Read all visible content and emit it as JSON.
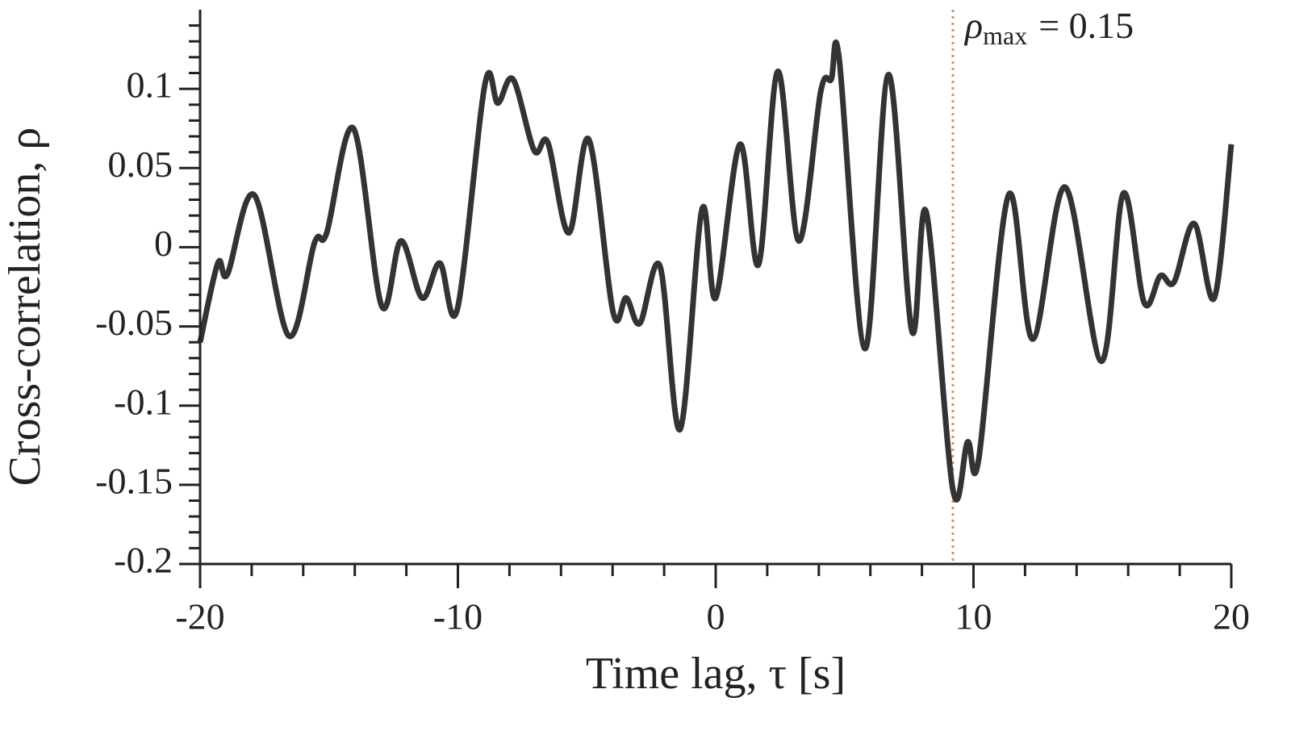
{
  "chart_data": {
    "type": "line",
    "xlabel": "Time lag, τ [s]",
    "ylabel": "Cross-correlation, ρ",
    "xlim": [
      -20,
      20
    ],
    "xticks": [
      -20,
      -10,
      0,
      10,
      20
    ],
    "xminorticks": [
      -18,
      -16,
      -14,
      -12,
      -8,
      -6,
      -4,
      -2,
      2,
      4,
      6,
      8,
      12,
      14,
      16,
      18
    ],
    "ylim": [
      -0.2,
      0.15
    ],
    "yticks": [
      -0.2,
      -0.15,
      -0.1,
      -0.05,
      0,
      0.05,
      0.1
    ],
    "yminorticks": [
      -0.19,
      -0.18,
      -0.17,
      -0.16,
      -0.14,
      -0.13,
      -0.12,
      -0.11,
      -0.09,
      -0.08,
      -0.07,
      -0.06,
      -0.04,
      -0.03,
      -0.02,
      -0.01,
      0.01,
      0.02,
      0.03,
      0.04,
      0.06,
      0.07,
      0.08,
      0.09,
      0.11,
      0.12,
      0.13,
      0.14
    ],
    "series": [
      {
        "color": "#333333",
        "x": [
          -20,
          -19.31,
          -18.94,
          -17.9,
          -16.56,
          -15.56,
          -15.09,
          -14.05,
          -12.96,
          -12.21,
          -11.39,
          -10.7,
          -10.02,
          -8.95,
          -8.45,
          -7.86,
          -7.04,
          -6.51,
          -5.7,
          -4.92,
          -3.98,
          -3.47,
          -2.94,
          -2.16,
          -1.38,
          -0.53,
          0,
          0.94,
          1.66,
          2.41,
          3.22,
          4.07,
          4.48,
          4.79,
          5.79,
          6.7,
          7.61,
          8.17,
          9.2,
          9.77,
          10.2,
          11.36,
          12.3,
          13.55,
          14.96,
          15.81,
          16.62,
          17.25,
          17.78,
          18.56,
          19.34,
          20
        ],
        "values": [
          -0.06,
          -0.01,
          -0.017,
          0.033,
          -0.056,
          0.003,
          0.009,
          0.075,
          -0.037,
          0.004,
          -0.032,
          -0.01,
          -0.039,
          0.103,
          0.091,
          0.106,
          0.061,
          0.066,
          0.009,
          0.068,
          -0.041,
          -0.032,
          -0.048,
          -0.012,
          -0.115,
          0.024,
          -0.032,
          0.065,
          -0.011,
          0.111,
          0.004,
          0.098,
          0.106,
          0.119,
          -0.064,
          0.109,
          -0.053,
          0.022,
          -0.153,
          -0.123,
          -0.134,
          0.033,
          -0.058,
          0.038,
          -0.072,
          0.034,
          -0.035,
          -0.018,
          -0.022,
          0.015,
          -0.032,
          0.065
        ]
      }
    ],
    "vline": {
      "x": 9.2,
      "color": "#e0924a"
    },
    "annotation": {
      "symbol": "ρ",
      "subscript": "max",
      "text": "= 0.15"
    }
  }
}
